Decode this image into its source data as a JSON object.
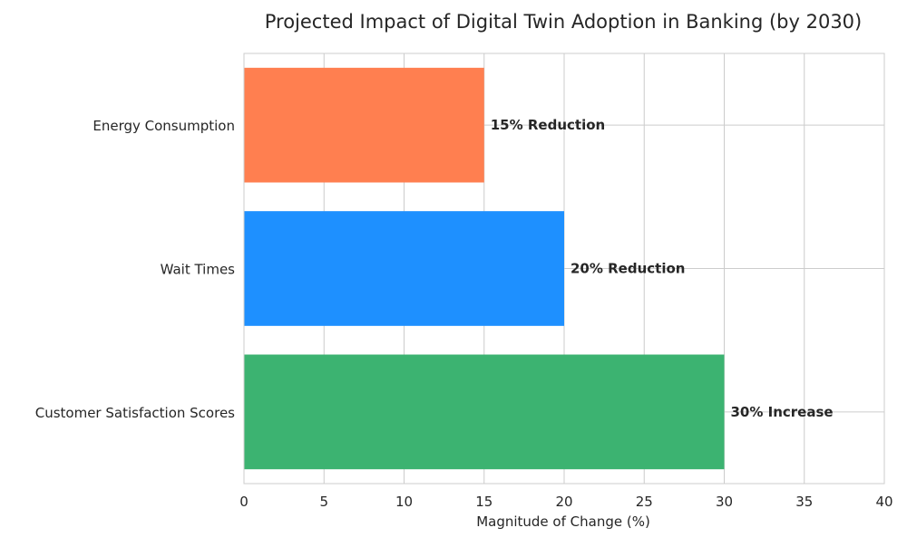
{
  "chart_data": {
    "type": "bar",
    "orientation": "horizontal",
    "title": "Projected Impact of Digital Twin Adoption in Banking (by 2030)",
    "xlabel": "Magnitude of Change (%)",
    "ylabel": "",
    "xlim": [
      0,
      40
    ],
    "xticks": [
      0,
      5,
      10,
      15,
      20,
      25,
      30,
      35,
      40
    ],
    "grid": true,
    "categories": [
      "Customer Satisfaction Scores",
      "Wait Times",
      "Energy Consumption"
    ],
    "values": [
      30,
      20,
      15
    ],
    "data_labels": [
      "30% Increase",
      "20% Reduction",
      "15% Reduction"
    ],
    "colors": [
      "#3cb371",
      "#1e90ff",
      "#ff7f50"
    ]
  }
}
